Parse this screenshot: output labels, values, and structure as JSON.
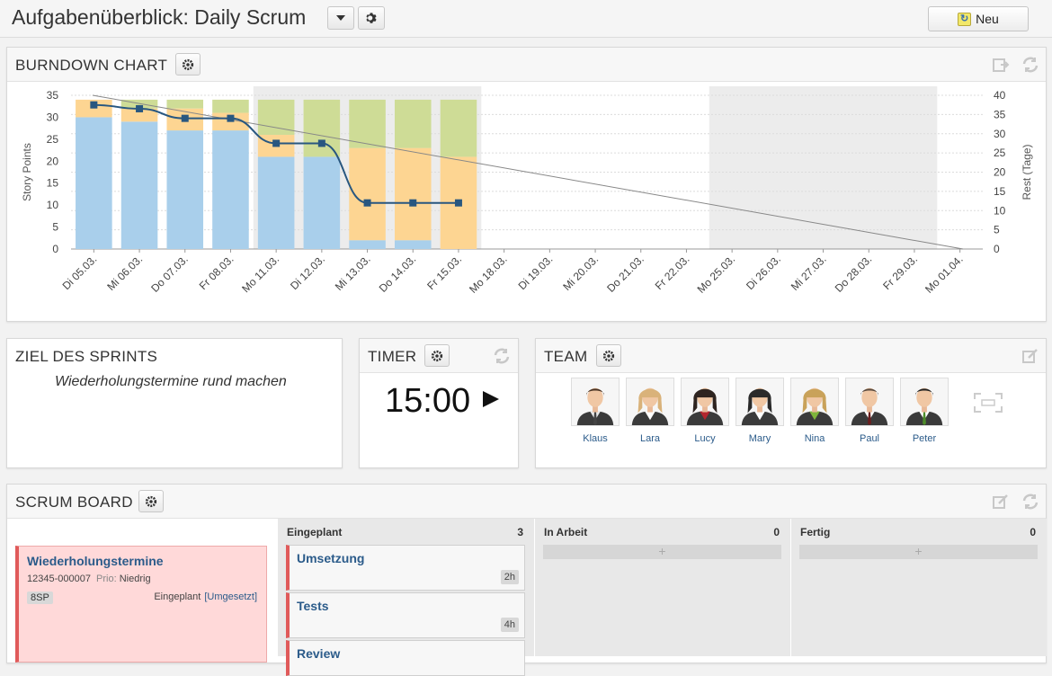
{
  "header": {
    "title": "Aufgabenüberblick: Daily Scrum",
    "new_label": "Neu"
  },
  "burndown": {
    "title": "BURNDOWN CHART",
    "chart_data": {
      "type": "bar",
      "categories": [
        "Di 05.03.",
        "Mi 06.03.",
        "Do 07.03.",
        "Fr 08.03.",
        "Mo 11.03.",
        "Di 12.03.",
        "Mi 13.03.",
        "Do 14.03.",
        "Fr 15.03.",
        "Mo 18.03.",
        "Di 19.03.",
        "Mi 20.03.",
        "Do 21.03.",
        "Fr 22.03.",
        "Mo 25.03.",
        "Di 26.03.",
        "Mi 27.03.",
        "Do 28.03.",
        "Fr 29.03.",
        "Mo 01.04."
      ],
      "ylabel": "Story Points",
      "y2label": "Rest (Tage)",
      "ylim": [
        0,
        35
      ],
      "y2lim": [
        0,
        40
      ],
      "yticks": [
        0,
        5,
        10,
        15,
        20,
        25,
        30,
        35
      ],
      "y2ticks": [
        0,
        5,
        10,
        15,
        20,
        25,
        30,
        35,
        40
      ],
      "stacked": true,
      "series": [
        {
          "color": "#a9cfeb",
          "values": [
            30,
            29,
            27,
            27,
            21,
            21,
            2,
            2,
            0,
            0,
            0,
            0,
            0,
            0,
            0,
            0,
            0,
            0,
            0,
            0
          ]
        },
        {
          "color": "#fdd592",
          "values": [
            4,
            3,
            5,
            4,
            5,
            0,
            21,
            21,
            21,
            0,
            0,
            0,
            0,
            0,
            0,
            0,
            0,
            0,
            0,
            0
          ]
        },
        {
          "color": "#cedc96",
          "values": [
            0,
            2,
            2,
            3,
            8,
            13,
            11,
            11,
            13,
            0,
            0,
            0,
            0,
            0,
            0,
            0,
            0,
            0,
            0,
            0
          ]
        }
      ],
      "line": {
        "axis": "y2",
        "color": "#285780",
        "values": [
          37.5,
          36.5,
          34,
          34,
          27.5,
          27.5,
          12,
          12,
          12
        ]
      },
      "ideal_line": {
        "axis": "y2",
        "from": 40,
        "to": 0,
        "color": "#888888"
      },
      "shaded_weeks": [
        [
          4,
          8
        ],
        [
          14,
          18
        ]
      ],
      "grid": true
    }
  },
  "goal": {
    "title": "ZIEL DES SPRINTS",
    "text": "Wiederholungstermine rund machen"
  },
  "timer": {
    "title": "TIMER",
    "value": "15:00"
  },
  "team": {
    "title": "TEAM",
    "members": [
      {
        "name": "Klaus",
        "gender": "m",
        "hair": "#4a3425",
        "shirt": "#e8e8e8",
        "tie": "#444444"
      },
      {
        "name": "Lara",
        "gender": "f",
        "hair": "#d9b27a",
        "shirt": "#ffffff",
        "tie": ""
      },
      {
        "name": "Lucy",
        "gender": "f",
        "hair": "#2e2420",
        "shirt": "#b3262e",
        "tie": ""
      },
      {
        "name": "Mary",
        "gender": "f",
        "hair": "#2a2a2a",
        "shirt": "#ffffff",
        "tie": ""
      },
      {
        "name": "Nina",
        "gender": "f",
        "hair": "#c9a25a",
        "shirt": "#7fb53b",
        "tie": ""
      },
      {
        "name": "Paul",
        "gender": "m",
        "hair": "#5a4a3e",
        "shirt": "#ffffff",
        "tie": "#6b1e1e"
      },
      {
        "name": "Peter",
        "gender": "m",
        "hair": "#222222",
        "shirt": "#ffffff",
        "tie": "#4e8c2a"
      }
    ]
  },
  "board": {
    "title": "SCRUM BOARD",
    "story": {
      "title": "Wiederholungstermine",
      "id": "12345-000007",
      "prio_label": "Prio:",
      "prio": "Niedrig",
      "points": "8SP",
      "status": "Eingeplant",
      "substatus": "[Umgesetzt]"
    },
    "columns": [
      {
        "name": "Eingeplant",
        "count": "3",
        "tasks": [
          {
            "title": "Umsetzung",
            "hours": "2h"
          },
          {
            "title": "Tests",
            "hours": "4h"
          },
          {
            "title": "Review",
            "hours": ""
          }
        ]
      },
      {
        "name": "In Arbeit",
        "count": "0",
        "add": "+"
      },
      {
        "name": "Fertig",
        "count": "0",
        "add": "+"
      }
    ]
  }
}
